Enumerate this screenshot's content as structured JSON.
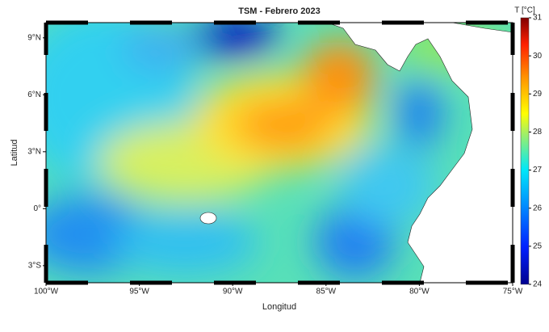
{
  "title": "TSM - Febrero 2023",
  "x_axis_label": "Longitud",
  "y_axis_label": "Latitud",
  "colorbar_label": "T [°C]",
  "xlim": [
    -100,
    -75
  ],
  "ylim": [
    -3.9,
    9.8
  ],
  "xticks": [
    {
      "value": -100,
      "label": "100°W"
    },
    {
      "value": -95,
      "label": "95°W"
    },
    {
      "value": -90,
      "label": "90°W"
    },
    {
      "value": -85,
      "label": "85°W"
    },
    {
      "value": -80,
      "label": "80°W"
    },
    {
      "value": -75,
      "label": "75°W"
    }
  ],
  "yticks": [
    {
      "value": -3,
      "label": "3°S"
    },
    {
      "value": 0,
      "label": "0°"
    },
    {
      "value": 3,
      "label": "3°N"
    },
    {
      "value": 6,
      "label": "6°N"
    },
    {
      "value": 9,
      "label": "9°N"
    }
  ],
  "colorbar_lim": [
    24,
    31
  ],
  "colorbar_ticks": [
    24,
    25,
    26,
    27,
    28,
    29,
    30,
    31
  ]
}
